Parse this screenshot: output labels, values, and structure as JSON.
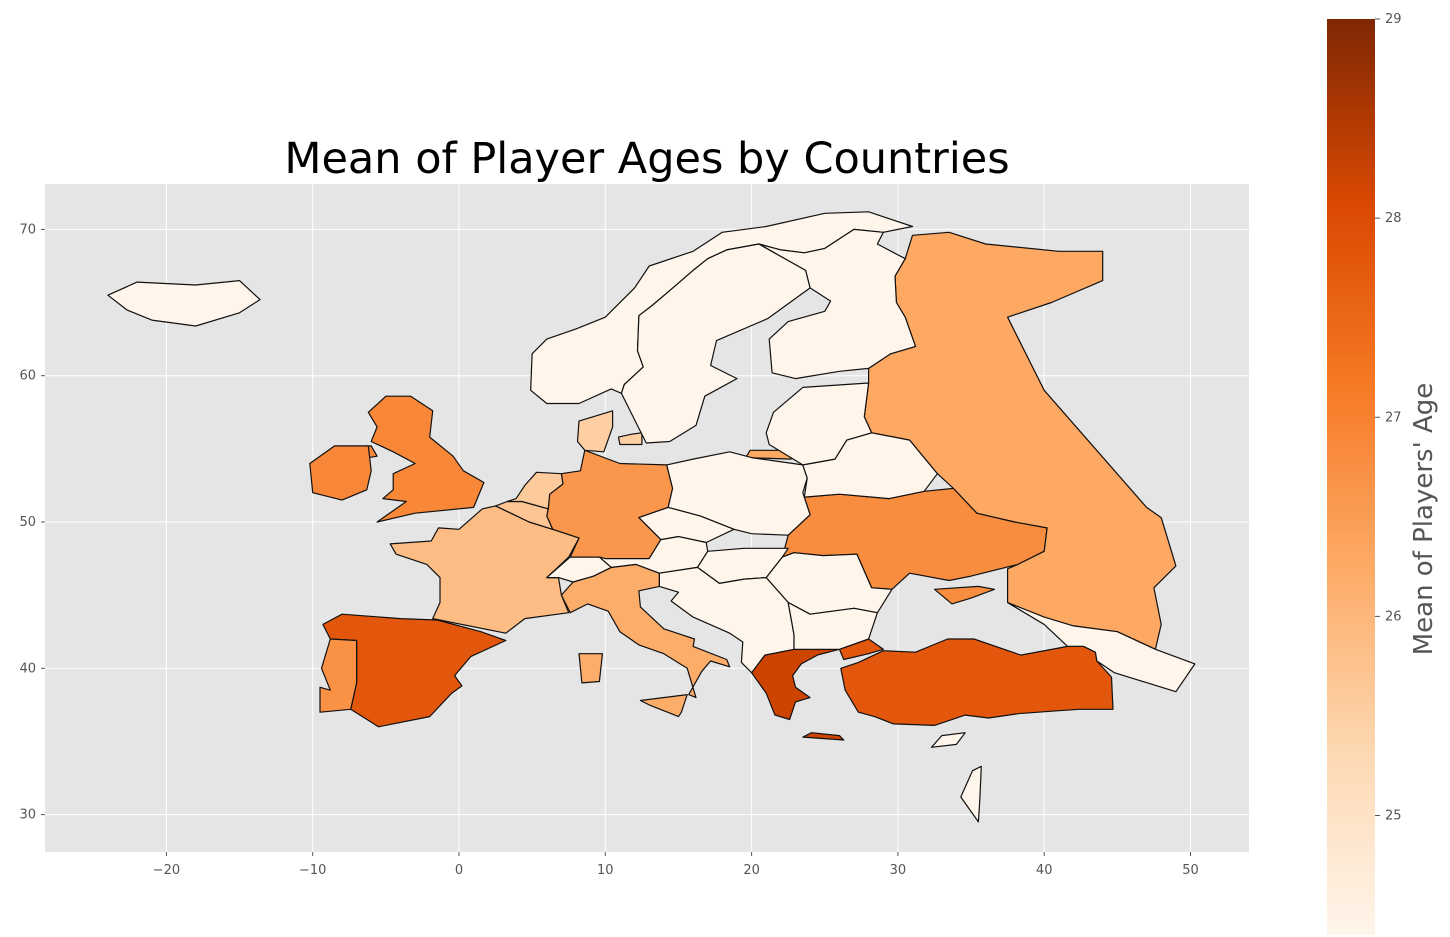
{
  "map": {
    "title": "Mean of Player Ages by Countries",
    "x_ticks": [
      "−20",
      "−10",
      "0",
      "10",
      "20",
      "30",
      "40",
      "50"
    ],
    "y_ticks": [
      "30",
      "40",
      "50",
      "60",
      "70"
    ],
    "grid": true,
    "background": "#e5e5e5",
    "colormap": "Oranges",
    "colorbar": {
      "label": "Mean of Players' Age",
      "ticks": [
        "25",
        "26",
        "27",
        "28",
        "29"
      ],
      "min_color": "#fff5eb",
      "max_color": "#7f2704"
    }
  },
  "chart_data": {
    "type": "choropleth",
    "title": "Mean of Player Ages by Countries",
    "xlim": [
      -28,
      54
    ],
    "ylim": [
      27.5,
      73
    ],
    "x_ticks": [
      -20,
      -10,
      0,
      10,
      20,
      30,
      40,
      50
    ],
    "y_ticks": [
      30,
      40,
      50,
      60,
      70
    ],
    "colorbar_range": [
      24.4,
      29
    ],
    "colorbar_label": "Mean of Players' Age",
    "regions": [
      {
        "region": "Greece",
        "value": 28.2
      },
      {
        "region": "Spain",
        "value": 27.8
      },
      {
        "region": "Turkey",
        "value": 27.8
      },
      {
        "region": "United Kingdom",
        "value": 26.9
      },
      {
        "region": "Ireland",
        "value": 26.9
      },
      {
        "region": "Ukraine",
        "value": 26.8
      },
      {
        "region": "Portugal",
        "value": 26.7
      },
      {
        "region": "Germany",
        "value": 26.6
      },
      {
        "region": "Russia",
        "value": 26.3
      },
      {
        "region": "Italy",
        "value": 26.2
      },
      {
        "region": "France",
        "value": 25.9
      },
      {
        "region": "Belgium",
        "value": 25.7
      },
      {
        "region": "Netherlands",
        "value": 25.6
      },
      {
        "region": "Denmark",
        "value": 25.5
      },
      {
        "region": "Iceland",
        "value": 24.4
      },
      {
        "region": "Norway",
        "value": 24.4
      },
      {
        "region": "Sweden",
        "value": 24.4
      },
      {
        "region": "Finland",
        "value": 24.4
      },
      {
        "region": "Poland",
        "value": 24.4
      },
      {
        "region": "Belarus",
        "value": 24.4
      },
      {
        "region": "Baltic States",
        "value": 24.4
      },
      {
        "region": "Czechia",
        "value": 24.4
      },
      {
        "region": "Austria",
        "value": 24.4
      },
      {
        "region": "Switzerland",
        "value": 24.4
      },
      {
        "region": "Hungary",
        "value": 24.4
      },
      {
        "region": "Romania",
        "value": 24.4
      },
      {
        "region": "Balkans",
        "value": 24.4
      },
      {
        "region": "Bulgaria",
        "value": 24.4
      },
      {
        "region": "Caucasus",
        "value": 24.4
      },
      {
        "region": "Israel",
        "value": 24.4
      },
      {
        "region": "Cyprus",
        "value": 24.4
      }
    ]
  }
}
